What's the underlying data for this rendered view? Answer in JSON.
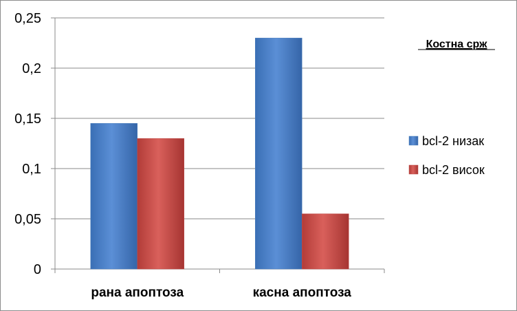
{
  "chart_data": {
    "type": "bar",
    "categories": [
      "рана апоптоза",
      "касна апоптоза"
    ],
    "series": [
      {
        "name": "bcl-2 низак",
        "values": [
          0.145,
          0.23
        ],
        "color": "#4f81bd"
      },
      {
        "name": "bcl-2 висок",
        "values": [
          0.13,
          0.055
        ],
        "color": "#c0504d"
      }
    ],
    "y_ticks": [
      "0",
      "0,05",
      "0,1",
      "0,15",
      "0,2",
      "0,25"
    ],
    "ylim": [
      0,
      0.25
    ],
    "grid": true,
    "legend_title": "Костна срж",
    "legend_position": "right"
  }
}
